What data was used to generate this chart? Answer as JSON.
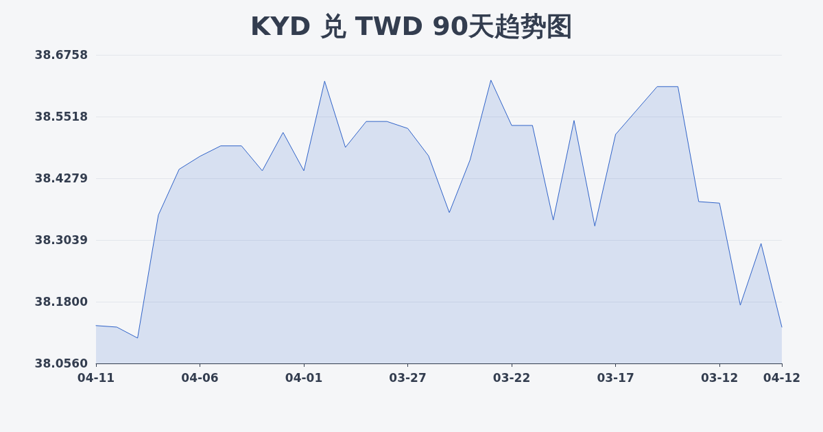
{
  "chart_data": {
    "type": "area",
    "title": "KYD 兑 TWD 90天趋势图",
    "categories": [
      "04-11",
      null,
      null,
      null,
      null,
      "04-06",
      null,
      null,
      null,
      null,
      "04-01",
      null,
      null,
      null,
      null,
      "03-27",
      null,
      null,
      null,
      null,
      "03-22",
      null,
      null,
      null,
      null,
      "03-17",
      null,
      null,
      null,
      null,
      "03-12",
      null,
      null,
      "04-12"
    ],
    "series": [
      {
        "color": "#2f62c8",
        "values": [
          38.132,
          38.129,
          38.107,
          38.354,
          38.446,
          38.472,
          38.493,
          38.493,
          38.443,
          38.52,
          38.443,
          38.623,
          38.49,
          38.542,
          38.542,
          38.528,
          38.473,
          38.359,
          38.465,
          38.625,
          38.534,
          38.534,
          38.344,
          38.544,
          38.332,
          38.516,
          38.564,
          38.612,
          38.612,
          38.381,
          38.378,
          38.173,
          38.297,
          38.129
        ]
      }
    ],
    "ylim": [
      38.056,
      38.6758
    ],
    "yticks": [
      {
        "value": 38.056,
        "label": "38.0560"
      },
      {
        "value": 38.18,
        "label": "38.1800"
      },
      38.3039,
      38.4279,
      38.5518,
      38.6758
    ],
    "grid": "y",
    "marker": "none",
    "line_style": "solid"
  }
}
